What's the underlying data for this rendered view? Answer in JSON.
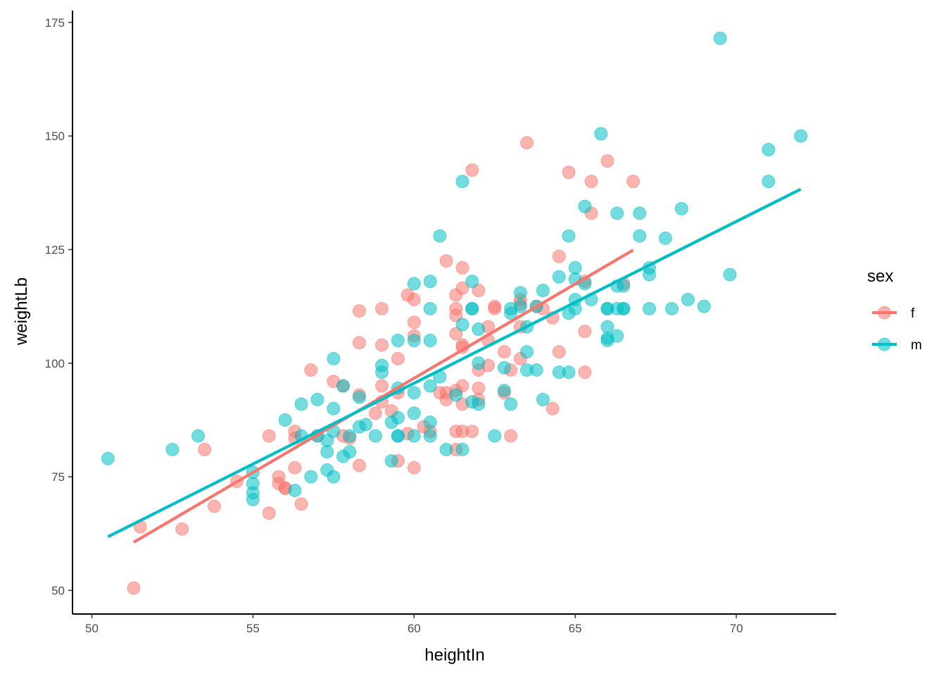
{
  "chart_data": {
    "type": "scatter",
    "xlabel": "heightIn",
    "ylabel": "weightLb",
    "xlim": [
      49.4,
      73.1
    ],
    "ylim": [
      44.8,
      177.6
    ],
    "x_ticks": [
      50,
      55,
      60,
      65,
      70
    ],
    "x_tick_labels": [
      "50",
      "55",
      "60",
      "65",
      "70"
    ],
    "y_ticks": [
      50,
      75,
      100,
      125,
      150,
      175
    ],
    "y_tick_labels": [
      "50",
      "75",
      "100",
      "125",
      "150",
      "175"
    ],
    "grid": false,
    "legend": {
      "title": "sex",
      "position": "right"
    },
    "series": [
      {
        "name": "f",
        "color": "#F8766D",
        "trend": {
          "x": [
            51.3,
            66.8
          ],
          "y": [
            60.6,
            124.9
          ]
        },
        "points": [
          [
            51.3,
            50.5
          ],
          [
            51.5,
            64
          ],
          [
            52.8,
            63.5
          ],
          [
            53.5,
            81
          ],
          [
            53.8,
            68.5
          ],
          [
            54.5,
            74
          ],
          [
            55.5,
            84
          ],
          [
            55.5,
            67
          ],
          [
            55.8,
            75
          ],
          [
            55.8,
            73.5
          ],
          [
            56,
            72.5
          ],
          [
            56,
            72.5
          ],
          [
            56.3,
            77
          ],
          [
            56.3,
            85
          ],
          [
            56.3,
            83.5
          ],
          [
            56.5,
            69
          ],
          [
            56.8,
            98.5
          ],
          [
            57,
            84
          ],
          [
            57.5,
            96
          ],
          [
            57.8,
            95
          ],
          [
            57.8,
            84
          ],
          [
            58,
            83.5
          ],
          [
            58.3,
            111.5
          ],
          [
            58.3,
            104.5
          ],
          [
            58.3,
            93
          ],
          [
            58.3,
            77.5
          ],
          [
            58.8,
            89
          ],
          [
            59,
            112
          ],
          [
            59,
            104
          ],
          [
            59,
            95
          ],
          [
            59,
            91.5
          ],
          [
            59.3,
            89.5
          ],
          [
            59.5,
            101
          ],
          [
            59.5,
            93.5
          ],
          [
            59.5,
            78.5
          ],
          [
            59.8,
            84.5
          ],
          [
            59.8,
            115
          ],
          [
            60,
            114
          ],
          [
            60,
            109
          ],
          [
            60,
            106
          ],
          [
            60,
            77
          ],
          [
            60.3,
            86
          ],
          [
            60.5,
            85
          ],
          [
            60.8,
            93.5
          ],
          [
            61,
            122.5
          ],
          [
            61,
            93.5
          ],
          [
            61,
            92
          ],
          [
            61.3,
            115
          ],
          [
            61.3,
            112
          ],
          [
            61.3,
            110.5
          ],
          [
            61.3,
            106.5
          ],
          [
            61.3,
            94
          ],
          [
            61.3,
            85
          ],
          [
            61.3,
            81
          ],
          [
            61.5,
            121
          ],
          [
            61.5,
            116.5
          ],
          [
            61.5,
            103.5
          ],
          [
            61.5,
            104
          ],
          [
            61.5,
            95
          ],
          [
            61.5,
            91
          ],
          [
            61.5,
            85
          ],
          [
            61.8,
            142.5
          ],
          [
            61.8,
            85
          ],
          [
            62,
            116
          ],
          [
            62,
            98.5
          ],
          [
            62,
            94.5
          ],
          [
            62,
            92
          ],
          [
            62.3,
            108
          ],
          [
            62.3,
            105
          ],
          [
            62.3,
            99.5
          ],
          [
            62.5,
            112.5
          ],
          [
            62.5,
            112
          ],
          [
            62.8,
            102.5
          ],
          [
            62.8,
            93.5
          ],
          [
            63,
            98.5
          ],
          [
            63,
            84
          ],
          [
            63.3,
            114
          ],
          [
            63.3,
            113
          ],
          [
            63.3,
            108
          ],
          [
            63.3,
            101
          ],
          [
            63.5,
            148.5
          ],
          [
            63.8,
            112.5
          ],
          [
            64,
            112
          ],
          [
            64.3,
            110
          ],
          [
            64.3,
            90
          ],
          [
            64.5,
            123.5
          ],
          [
            64.5,
            102.5
          ],
          [
            64.8,
            142
          ],
          [
            65.3,
            118
          ],
          [
            65.3,
            107
          ],
          [
            65.3,
            98
          ],
          [
            65.5,
            140
          ],
          [
            65.5,
            133
          ],
          [
            66,
            144.5
          ],
          [
            66.5,
            117.5
          ],
          [
            66.8,
            140
          ]
        ]
      },
      {
        "name": "m",
        "color": "#00BFC4",
        "trend": {
          "x": [
            50.5,
            72
          ],
          "y": [
            61.8,
            138.3
          ]
        },
        "points": [
          [
            50.5,
            79
          ],
          [
            52.5,
            81
          ],
          [
            53.3,
            84
          ],
          [
            55,
            76
          ],
          [
            55,
            73.5
          ],
          [
            55,
            71.5
          ],
          [
            55,
            70
          ],
          [
            56,
            87.5
          ],
          [
            56.3,
            72
          ],
          [
            56.5,
            91
          ],
          [
            56.5,
            84
          ],
          [
            56.8,
            75
          ],
          [
            57,
            92
          ],
          [
            57,
            84
          ],
          [
            57.3,
            83
          ],
          [
            57.3,
            80.5
          ],
          [
            57.3,
            76.5
          ],
          [
            57.5,
            101
          ],
          [
            57.5,
            90
          ],
          [
            57.5,
            85
          ],
          [
            57.5,
            75
          ],
          [
            57.8,
            95
          ],
          [
            57.8,
            79.5
          ],
          [
            58,
            84
          ],
          [
            58,
            80.5
          ],
          [
            58.3,
            92.5
          ],
          [
            58.3,
            86
          ],
          [
            58.5,
            86.5
          ],
          [
            58.8,
            84
          ],
          [
            59,
            99.5
          ],
          [
            59,
            98
          ],
          [
            59.3,
            87
          ],
          [
            59.3,
            78.5
          ],
          [
            59.5,
            105
          ],
          [
            59.5,
            94.5
          ],
          [
            59.5,
            88
          ],
          [
            59.5,
            84
          ],
          [
            59.5,
            84
          ],
          [
            60,
            117.5
          ],
          [
            60,
            105
          ],
          [
            60,
            93.5
          ],
          [
            60,
            89
          ],
          [
            60,
            84
          ],
          [
            60.5,
            118
          ],
          [
            60.5,
            112
          ],
          [
            60.5,
            105
          ],
          [
            60.5,
            95
          ],
          [
            60.5,
            87
          ],
          [
            60.5,
            84
          ],
          [
            60.8,
            128
          ],
          [
            60.8,
            97
          ],
          [
            61,
            81
          ],
          [
            61.3,
            93
          ],
          [
            61.5,
            140
          ],
          [
            61.5,
            108.5
          ],
          [
            61.5,
            81
          ],
          [
            61.8,
            118
          ],
          [
            61.8,
            112
          ],
          [
            61.8,
            112
          ],
          [
            61.8,
            91.5
          ],
          [
            62,
            107.5
          ],
          [
            62,
            100
          ],
          [
            62,
            91
          ],
          [
            62.5,
            84
          ],
          [
            62.8,
            99
          ],
          [
            62.8,
            94
          ],
          [
            63,
            112
          ],
          [
            63,
            111
          ],
          [
            63,
            91
          ],
          [
            63.3,
            115.5
          ],
          [
            63.3,
            112.5
          ],
          [
            63.5,
            108
          ],
          [
            63.5,
            102.5
          ],
          [
            63.5,
            98.5
          ],
          [
            63.8,
            112.5
          ],
          [
            63.8,
            98.5
          ],
          [
            64,
            116
          ],
          [
            64,
            92
          ],
          [
            64.5,
            119
          ],
          [
            64.5,
            98
          ],
          [
            64.8,
            128
          ],
          [
            64.8,
            111
          ],
          [
            64.8,
            98
          ],
          [
            65,
            121
          ],
          [
            65,
            118.5
          ],
          [
            65,
            114
          ],
          [
            65,
            112
          ],
          [
            65.3,
            134.5
          ],
          [
            65.3,
            117.5
          ],
          [
            65.5,
            114
          ],
          [
            65.8,
            150.5
          ],
          [
            66,
            112
          ],
          [
            66,
            112
          ],
          [
            66,
            108
          ],
          [
            66,
            105.5
          ],
          [
            66,
            105
          ],
          [
            66.3,
            133
          ],
          [
            66.3,
            117
          ],
          [
            66.3,
            112
          ],
          [
            66.3,
            106
          ],
          [
            66.5,
            117
          ],
          [
            66.5,
            112
          ],
          [
            66.5,
            112
          ],
          [
            67,
            133
          ],
          [
            67,
            128
          ],
          [
            67.3,
            121
          ],
          [
            67.3,
            119.5
          ],
          [
            67.3,
            112
          ],
          [
            67.8,
            127.5
          ],
          [
            68,
            112
          ],
          [
            68.3,
            134
          ],
          [
            68.5,
            114
          ],
          [
            69,
            112.5
          ],
          [
            69.5,
            171.5
          ],
          [
            69.8,
            119.5
          ],
          [
            71,
            147
          ],
          [
            71,
            140
          ],
          [
            72,
            150
          ]
        ]
      }
    ]
  }
}
